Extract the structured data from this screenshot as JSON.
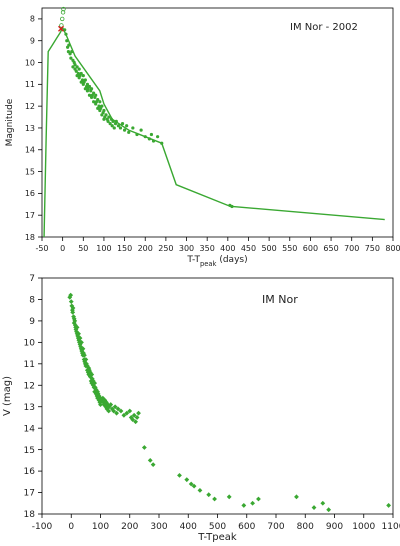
{
  "chart_data": [
    {
      "type": "scatter",
      "title": "IM Nor - 2002",
      "xlabel": "T-T",
      "xlabel_sub": "peak",
      "xlabel_suffix": " (days)",
      "ylabel": "Magnitude",
      "xlim": [
        -50,
        800
      ],
      "ylim": [
        18,
        7.5
      ],
      "y_inverted": true,
      "grid": false,
      "x_ticks": [
        -50,
        0,
        50,
        100,
        150,
        200,
        250,
        300,
        350,
        400,
        450,
        500,
        550,
        600,
        650,
        700,
        750,
        800
      ],
      "y_ticks": [
        8,
        9,
        10,
        11,
        12,
        13,
        14,
        15,
        16,
        17,
        18
      ],
      "colors": {
        "points": "#3aa832",
        "line": "#3aa832",
        "open_markers": "#3aa832",
        "peak_marker": "#d42020"
      },
      "series": [
        {
          "kind": "line",
          "x": [
            -45,
            -40,
            -35,
            -25,
            -15,
            -5,
            0,
            10,
            30,
            60,
            90,
            100,
            120,
            160,
            200,
            240,
            275,
            400,
            410,
            780
          ],
          "y": [
            18,
            13.5,
            9.5,
            9.2,
            8.9,
            8.6,
            8.4,
            8.8,
            9.7,
            10.5,
            11.3,
            11.9,
            12.6,
            13.1,
            13.4,
            13.7,
            15.6,
            16.55,
            16.6,
            17.2
          ]
        },
        {
          "kind": "points",
          "x": [
            5,
            8,
            10,
            12,
            14,
            15,
            18,
            20,
            22,
            25,
            25,
            28,
            30,
            30,
            33,
            35,
            35,
            38,
            40,
            40,
            42,
            45,
            45,
            48,
            50,
            50,
            52,
            55,
            55,
            58,
            60,
            60,
            62,
            65,
            65,
            68,
            70,
            70,
            72,
            75,
            75,
            78,
            80,
            80,
            82,
            85,
            85,
            88,
            90,
            90,
            92,
            95,
            95,
            98,
            100,
            100,
            102,
            105,
            108,
            110,
            112,
            115,
            118,
            120,
            122,
            125,
            128,
            130,
            135,
            140,
            145,
            150,
            155,
            160,
            170,
            180,
            190,
            200,
            210,
            215,
            220,
            230,
            240,
            405,
            410
          ],
          "y": [
            8.5,
            8.7,
            9.0,
            9.3,
            9.5,
            9.2,
            9.6,
            9.8,
            9.5,
            9.9,
            10.2,
            10.0,
            10.3,
            10.1,
            10.4,
            10.2,
            10.6,
            10.5,
            10.3,
            10.7,
            10.6,
            10.5,
            10.9,
            10.8,
            10.6,
            11.0,
            10.9,
            10.8,
            11.2,
            11.1,
            11.0,
            11.3,
            11.2,
            11.1,
            11.5,
            11.3,
            11.2,
            11.6,
            11.5,
            11.4,
            11.8,
            11.6,
            11.5,
            11.9,
            11.8,
            11.7,
            12.1,
            12.0,
            11.8,
            12.2,
            12.1,
            12.0,
            12.4,
            12.3,
            12.2,
            12.6,
            12.5,
            12.4,
            12.6,
            12.7,
            12.5,
            12.8,
            12.6,
            12.9,
            12.7,
            13.0,
            12.8,
            12.7,
            12.9,
            13.0,
            12.8,
            13.1,
            12.9,
            13.2,
            13.0,
            13.3,
            13.1,
            13.4,
            13.5,
            13.3,
            13.6,
            13.4,
            13.7,
            16.55,
            16.6
          ]
        },
        {
          "kind": "open-circles",
          "x": [
            -3,
            -1,
            1,
            2
          ],
          "y": [
            8.3,
            8.0,
            7.7,
            7.55
          ]
        },
        {
          "kind": "peak-marker",
          "x": [
            -4
          ],
          "y": [
            8.45
          ]
        }
      ]
    },
    {
      "type": "scatter",
      "title": "IM Nor",
      "xlabel": "T-Tpeak",
      "ylabel": "V (mag)",
      "xlim": [
        -100,
        1100
      ],
      "ylim": [
        18,
        7
      ],
      "y_inverted": true,
      "grid": false,
      "x_ticks": [
        -100,
        0,
        100,
        200,
        300,
        400,
        500,
        600,
        700,
        800,
        900,
        1000,
        1100
      ],
      "y_ticks": [
        7,
        8,
        9,
        10,
        11,
        12,
        13,
        14,
        15,
        16,
        17,
        18
      ],
      "colors": {
        "points": "#3aa832"
      },
      "series": [
        {
          "kind": "diamonds",
          "x": [
            -5,
            -2,
            0,
            2,
            4,
            5,
            6,
            8,
            10,
            10,
            12,
            14,
            15,
            16,
            18,
            20,
            20,
            22,
            24,
            25,
            26,
            28,
            30,
            30,
            32,
            34,
            35,
            36,
            38,
            40,
            40,
            42,
            44,
            45,
            46,
            48,
            50,
            50,
            52,
            55,
            55,
            58,
            60,
            60,
            62,
            65,
            65,
            68,
            70,
            70,
            72,
            75,
            75,
            78,
            80,
            80,
            82,
            85,
            85,
            88,
            90,
            90,
            92,
            95,
            95,
            98,
            100,
            100,
            105,
            108,
            110,
            112,
            115,
            118,
            120,
            122,
            125,
            128,
            130,
            135,
            140,
            145,
            150,
            155,
            160,
            170,
            180,
            190,
            200,
            205,
            210,
            215,
            220,
            225,
            230,
            250,
            270,
            280,
            370,
            395,
            410,
            420,
            440,
            470,
            490,
            540,
            590,
            620,
            640,
            770,
            830,
            860,
            880,
            1085
          ],
          "y": [
            7.9,
            7.8,
            8.1,
            8.3,
            8.5,
            8.6,
            8.4,
            8.8,
            8.9,
            9.1,
            9.0,
            9.2,
            9.3,
            9.4,
            9.5,
            9.6,
            9.3,
            9.7,
            9.8,
            9.6,
            9.9,
            10.0,
            10.1,
            9.8,
            10.2,
            10.3,
            10.0,
            10.4,
            10.5,
            10.3,
            10.6,
            10.5,
            10.8,
            10.6,
            10.9,
            11.0,
            10.8,
            11.1,
            11.0,
            11.3,
            11.1,
            11.4,
            11.2,
            11.5,
            11.3,
            11.6,
            11.4,
            11.8,
            11.5,
            11.9,
            11.7,
            12.0,
            11.8,
            12.1,
            11.9,
            12.3,
            12.1,
            12.4,
            12.2,
            12.5,
            12.3,
            12.6,
            12.4,
            12.7,
            12.5,
            12.8,
            12.6,
            12.9,
            12.7,
            12.6,
            12.8,
            12.9,
            12.7,
            13.0,
            12.8,
            13.1,
            12.9,
            13.2,
            13.0,
            12.9,
            13.1,
            13.2,
            13.0,
            13.3,
            13.1,
            13.2,
            13.4,
            13.3,
            13.2,
            13.5,
            13.6,
            13.4,
            13.7,
            13.5,
            13.3,
            14.9,
            15.5,
            15.7,
            16.2,
            16.4,
            16.6,
            16.7,
            16.9,
            17.1,
            17.3,
            17.2,
            17.6,
            17.5,
            17.3,
            17.2,
            17.7,
            17.5,
            17.8,
            17.6
          ]
        }
      ]
    }
  ]
}
